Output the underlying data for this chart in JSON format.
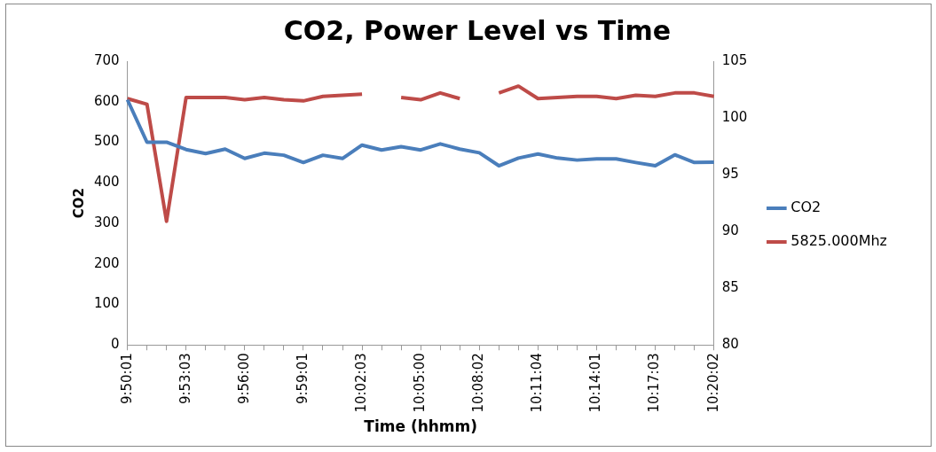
{
  "chart_data": {
    "type": "line",
    "title": "CO2, Power Level vs Time",
    "xlabel": "Time (hhmm)",
    "ylabel": "CO2",
    "categories": [
      "9:50:01",
      null,
      null,
      "9:53:03",
      null,
      null,
      "9:56:00",
      null,
      null,
      "9:59:01",
      null,
      null,
      "10:02:03",
      null,
      null,
      "10:05:00",
      null,
      null,
      "10:08:02",
      null,
      null,
      "10:11:04",
      null,
      null,
      "10:14:01",
      null,
      null,
      "10:17:03",
      null,
      null,
      "10:20:02"
    ],
    "series": [
      {
        "name": "CO2",
        "color": "#4a7ebb",
        "values": [
          605,
          500,
          500,
          482,
          472,
          483,
          460,
          473,
          468,
          450,
          468,
          460,
          493,
          481,
          489,
          481,
          496,
          483,
          474,
          442,
          461,
          471,
          461,
          456,
          459,
          459,
          450,
          442,
          469,
          450,
          451
        ]
      },
      {
        "name": "5825.000Mhz",
        "color": "#be4b48",
        "axis": "y2",
        "values": [
          101.7,
          101.2,
          90.9,
          101.8,
          101.8,
          101.8,
          101.6,
          101.8,
          101.6,
          101.5,
          101.9,
          102.0,
          102.1,
          null,
          101.8,
          101.6,
          102.2,
          101.7,
          null,
          102.2,
          102.8,
          101.7,
          101.8,
          101.9,
          101.9,
          101.7,
          102.0,
          101.9,
          102.2,
          102.2,
          101.9
        ]
      }
    ],
    "ylim": [
      0,
      700
    ],
    "yticks": [
      0,
      100,
      200,
      300,
      400,
      500,
      600,
      700
    ],
    "y2lim": [
      80,
      105
    ],
    "y2ticks": [
      80,
      85,
      90,
      95,
      100,
      105
    ],
    "legend": "right",
    "grid": false,
    "marker": "none",
    "line_style": "solid"
  }
}
